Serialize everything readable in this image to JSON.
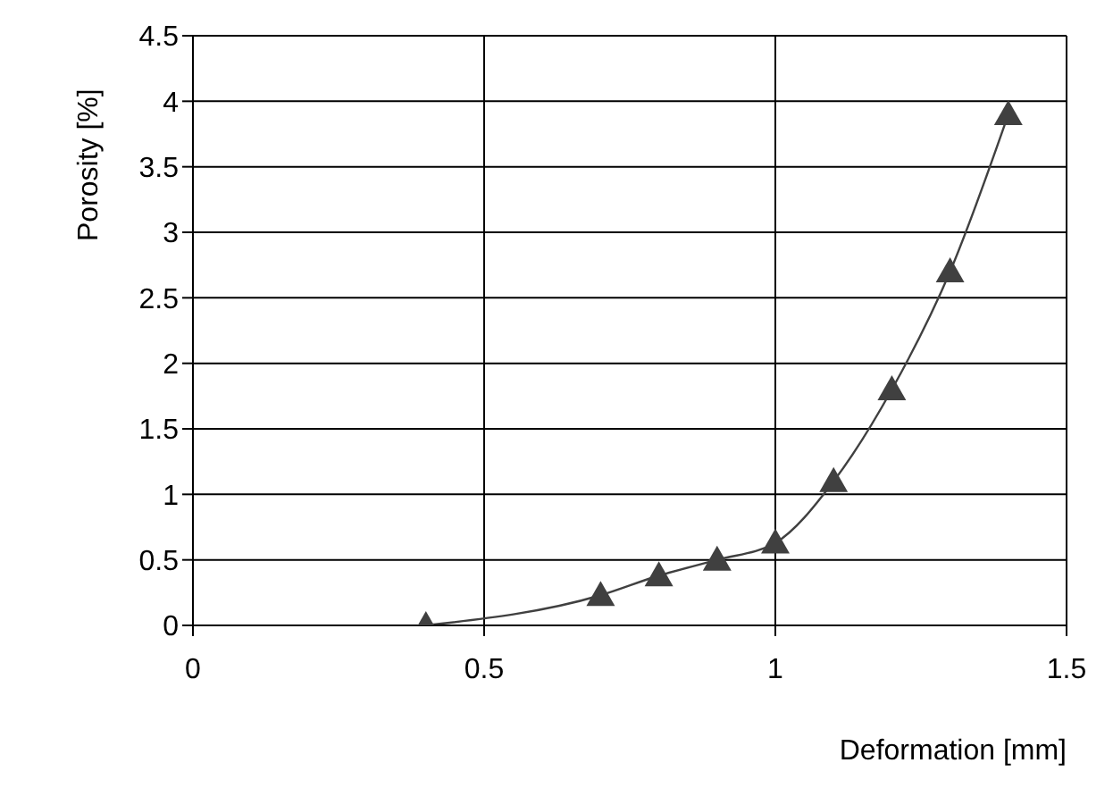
{
  "chart_data": {
    "type": "line",
    "xlabel": "Deformation [mm]",
    "ylabel": "Porosity [%]",
    "x": [
      0.4,
      0.7,
      0.8,
      0.9,
      1.0,
      1.1,
      1.2,
      1.3,
      1.4
    ],
    "series": [
      {
        "color": "#404040",
        "values": [
          0,
          0.23,
          0.38,
          0.5,
          0.63,
          1.1,
          1.8,
          2.7,
          3.9
        ]
      }
    ],
    "xlim": [
      0,
      1.5
    ],
    "xticks": [
      0,
      0.5,
      1,
      1.5
    ],
    "ylim": [
      0,
      4.5
    ],
    "yticks": [
      0,
      0.5,
      1,
      1.5,
      2,
      2.5,
      3,
      3.5,
      4,
      4.5
    ],
    "grid": true,
    "marker": "triangle",
    "line_style": "solid"
  }
}
